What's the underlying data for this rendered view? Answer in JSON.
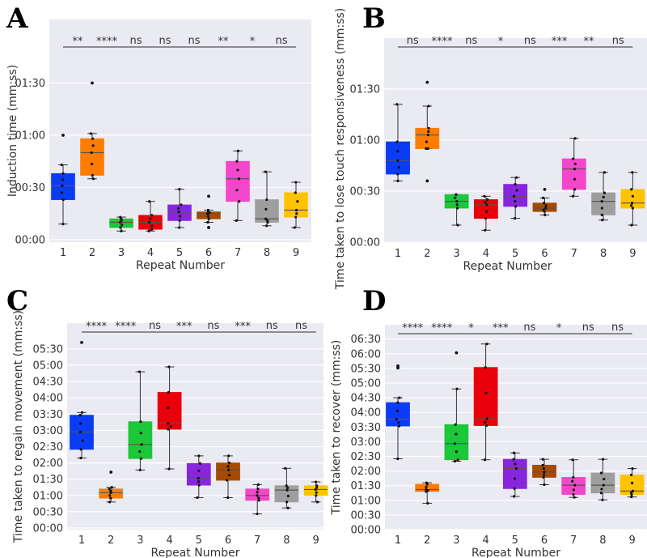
{
  "chart_data": [
    {
      "panel": "A",
      "type": "box",
      "title": "",
      "xlabel": "Repeat Number",
      "ylabel": "Induction time (mm:ss)",
      "categories": [
        "1",
        "2",
        "3",
        "4",
        "5",
        "6",
        "7",
        "8",
        "9"
      ],
      "colors": [
        "#0a3cf5",
        "#fe7d00",
        "#1bc839",
        "#e9000b",
        "#8826de",
        "#a44b00",
        "#f347cb",
        "#9e9e9e",
        "#ffc300"
      ],
      "ylim_seconds": [
        0,
        115
      ],
      "yticks_seconds": [
        0,
        30,
        60,
        90
      ],
      "ytick_labels": [
        "00:00",
        "00:30",
        "01:00",
        "01:30"
      ],
      "significance": [
        "**",
        "****",
        "ns",
        "ns",
        "ns",
        "**",
        "*",
        "ns"
      ],
      "grid": true,
      "boxes_seconds": [
        {
          "low": 9,
          "q1": 23,
          "median": 31,
          "q3": 38,
          "high": 43,
          "outliers": [
            60
          ]
        },
        {
          "low": 35,
          "q1": 37,
          "median": 50,
          "q3": 58,
          "high": 61,
          "outliers": [
            90
          ]
        },
        {
          "low": 5,
          "q1": 7,
          "median": 10,
          "q3": 12,
          "high": 13,
          "outliers": []
        },
        {
          "low": 5,
          "q1": 6,
          "median": 10,
          "q3": 14,
          "high": 22,
          "outliers": []
        },
        {
          "low": 7,
          "q1": 11,
          "median": 16,
          "q3": 20,
          "high": 29,
          "outliers": []
        },
        {
          "low": 10,
          "q1": 12,
          "median": 15,
          "q3": 16,
          "high": 17,
          "outliers": [
            7,
            25
          ]
        },
        {
          "low": 11,
          "q1": 22,
          "median": 35,
          "q3": 45,
          "high": 51,
          "outliers": []
        },
        {
          "low": 8,
          "q1": 10,
          "median": 12,
          "q3": 23,
          "high": 39,
          "outliers": []
        },
        {
          "low": 7,
          "q1": 13,
          "median": 17,
          "q3": 27,
          "high": 33,
          "outliers": []
        }
      ]
    },
    {
      "panel": "B",
      "type": "box",
      "title": "",
      "xlabel": "Repeat Number",
      "ylabel": "Time taken to lose touch responsiveness (mm:ss)",
      "categories": [
        "1",
        "2",
        "3",
        "4",
        "5",
        "6",
        "7",
        "8",
        "9"
      ],
      "colors": [
        "#0a3cf5",
        "#fe7d00",
        "#1bc839",
        "#e9000b",
        "#8826de",
        "#a44b00",
        "#f347cb",
        "#9e9e9e",
        "#ffc300"
      ],
      "ylim_seconds": [
        0,
        115
      ],
      "yticks_seconds": [
        0,
        30,
        60,
        90
      ],
      "ytick_labels": [
        "00:00",
        "00:30",
        "01:00",
        "01:30"
      ],
      "significance": [
        "ns",
        "****",
        "ns",
        "*",
        "ns",
        "***",
        "**",
        "ns"
      ],
      "grid": true,
      "boxes_seconds": [
        {
          "low": 36,
          "q1": 40,
          "median": 48,
          "q3": 59,
          "high": 81,
          "outliers": []
        },
        {
          "low": 55,
          "q1": 55,
          "median": 63,
          "q3": 67,
          "high": 80,
          "outliers": [
            36,
            94
          ]
        },
        {
          "low": 10,
          "q1": 20,
          "median": 24,
          "q3": 28,
          "high": 28,
          "outliers": []
        },
        {
          "low": 7,
          "q1": 14,
          "median": 22,
          "q3": 25,
          "high": 27,
          "outliers": []
        },
        {
          "low": 14,
          "q1": 21,
          "median": 27,
          "q3": 34,
          "high": 38,
          "outliers": []
        },
        {
          "low": 16,
          "q1": 18,
          "median": 20,
          "q3": 23,
          "high": 26,
          "outliers": [
            31
          ]
        },
        {
          "low": 27,
          "q1": 31,
          "median": 43,
          "q3": 49,
          "high": 61,
          "outliers": []
        },
        {
          "low": 13,
          "q1": 16,
          "median": 24,
          "q3": 29,
          "high": 41,
          "outliers": []
        },
        {
          "low": 10,
          "q1": 20,
          "median": 23,
          "q3": 31,
          "high": 41,
          "outliers": []
        }
      ]
    },
    {
      "panel": "C",
      "type": "box",
      "title": "",
      "xlabel": "Repeat Number",
      "ylabel": "Time taken to regain movement (mm:ss)",
      "categories": [
        "1",
        "2",
        "3",
        "4",
        "5",
        "6",
        "7",
        "8",
        "9"
      ],
      "colors": [
        "#0a3cf5",
        "#fe7d00",
        "#1bc839",
        "#e9000b",
        "#8826de",
        "#a44b00",
        "#f347cb",
        "#9e9e9e",
        "#ffc300"
      ],
      "ylim_seconds": [
        0,
        376
      ],
      "yticks_seconds": [
        0,
        30,
        60,
        90,
        120,
        150,
        180,
        210,
        240,
        270,
        300,
        330
      ],
      "ytick_labels": [
        "00:00",
        "00:30",
        "01:00",
        "01:30",
        "02:00",
        "02:30",
        "03:00",
        "03:30",
        "04:00",
        "04:30",
        "05:00",
        "05:30"
      ],
      "significance": [
        "****",
        "****",
        "ns",
        "***",
        "ns",
        "***",
        "ns",
        "ns"
      ],
      "grid": true,
      "boxes_seconds": [
        {
          "low": 129,
          "q1": 145,
          "median": 177,
          "q3": 208,
          "high": 213,
          "outliers": [
            342
          ]
        },
        {
          "low": 48,
          "q1": 55,
          "median": 65,
          "q3": 72,
          "high": 75,
          "outliers": [
            103
          ]
        },
        {
          "low": 107,
          "q1": 128,
          "median": 154,
          "q3": 196,
          "high": 288,
          "outliers": []
        },
        {
          "low": 109,
          "q1": 182,
          "median": 193,
          "q3": 250,
          "high": 297,
          "outliers": []
        },
        {
          "low": 56,
          "q1": 79,
          "median": 92,
          "q3": 119,
          "high": 133,
          "outliers": []
        },
        {
          "low": 56,
          "q1": 88,
          "median": 107,
          "q3": 120,
          "high": 133,
          "outliers": []
        },
        {
          "low": 26,
          "q1": 51,
          "median": 60,
          "q3": 72,
          "high": 80,
          "outliers": []
        },
        {
          "low": 37,
          "q1": 48,
          "median": 70,
          "q3": 78,
          "high": 110,
          "outliers": []
        },
        {
          "low": 48,
          "q1": 60,
          "median": 71,
          "q3": 78,
          "high": 85,
          "outliers": []
        }
      ]
    },
    {
      "panel": "D",
      "type": "box",
      "title": "",
      "xlabel": "Repeat Number",
      "ylabel": "Time taken to recover (mm:ss)",
      "categories": [
        "1",
        "2",
        "3",
        "4",
        "5",
        "6",
        "7",
        "8",
        "9"
      ],
      "colors": [
        "#0a3cf5",
        "#fe7d00",
        "#1bc839",
        "#e9000b",
        "#8826de",
        "#a44b00",
        "#f347cb",
        "#9e9e9e",
        "#ffc300"
      ],
      "ylim_seconds": [
        0,
        419
      ],
      "yticks_seconds": [
        0,
        30,
        60,
        90,
        120,
        150,
        180,
        210,
        240,
        270,
        300,
        330,
        360,
        390
      ],
      "ytick_labels": [
        "00:00",
        "00:30",
        "01:00",
        "01:30",
        "02:00",
        "02:30",
        "03:00",
        "03:30",
        "04:00",
        "04:30",
        "05:00",
        "05:30",
        "06:00",
        "06:30"
      ],
      "significance": [
        "****",
        "****",
        "*",
        "***",
        "ns",
        "*",
        "ns",
        "ns"
      ],
      "grid": true,
      "boxes_seconds": [
        {
          "low": 145,
          "q1": 212,
          "median": 226,
          "q3": 260,
          "high": 270,
          "outliers": [
            331,
            335
          ]
        },
        {
          "low": 54,
          "q1": 78,
          "median": 82,
          "q3": 93,
          "high": 96,
          "outliers": []
        },
        {
          "low": 140,
          "q1": 143,
          "median": 176,
          "q3": 215,
          "high": 288,
          "outliers": [
            362
          ]
        },
        {
          "low": 143,
          "q1": 213,
          "median": 227,
          "q3": 332,
          "high": 380,
          "outliers": []
        },
        {
          "low": 68,
          "q1": 84,
          "median": 125,
          "q3": 144,
          "high": 157,
          "outliers": []
        },
        {
          "low": 92,
          "q1": 107,
          "median": 118,
          "q3": 132,
          "high": 144,
          "outliers": []
        },
        {
          "low": 66,
          "q1": 72,
          "median": 91,
          "q3": 107,
          "high": 143,
          "outliers": []
        },
        {
          "low": 61,
          "q1": 75,
          "median": 91,
          "q3": 116,
          "high": 144,
          "outliers": []
        },
        {
          "low": 67,
          "q1": 72,
          "median": 79,
          "q3": 112,
          "high": 125,
          "outliers": []
        }
      ]
    }
  ],
  "figure": {
    "panel_letters": [
      "A",
      "B",
      "C",
      "D"
    ],
    "plot_background": "#eaeaf2",
    "grid_color": "#ffffff",
    "median_color": "#555555",
    "whisker_color": "#333333",
    "point_color": "#111111"
  }
}
